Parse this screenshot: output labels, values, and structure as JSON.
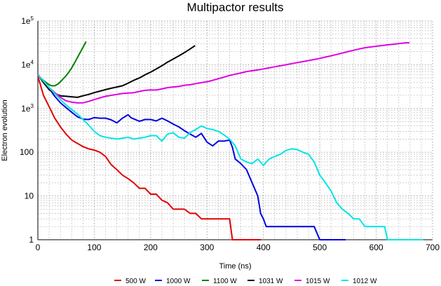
{
  "chart_data": {
    "type": "line",
    "title": "Multipactor results",
    "xlabel": "Time (ns)",
    "ylabel": "Electron evolution",
    "xlim": [
      0,
      700
    ],
    "ylim": [
      1,
      100000
    ],
    "yscale": "log",
    "grid": true,
    "legend_position": "bottom",
    "x_ticks": [
      "0",
      "100",
      "200",
      "300",
      "400",
      "500",
      "600",
      "700"
    ],
    "y_ticks": [
      {
        "base": "1",
        "exp": ""
      },
      {
        "base": "10",
        "exp": ""
      },
      {
        "base": "100",
        "exp": ""
      },
      {
        "base": "1e",
        "exp": "3"
      },
      {
        "base": "1e",
        "exp": "4"
      },
      {
        "base": "1e",
        "exp": "5"
      }
    ],
    "series": [
      {
        "name": "500 W",
        "color": "#e00000",
        "points": [
          [
            0,
            5500
          ],
          [
            5,
            3300
          ],
          [
            10,
            2000
          ],
          [
            20,
            1100
          ],
          [
            30,
            600
          ],
          [
            40,
            380
          ],
          [
            50,
            260
          ],
          [
            60,
            190
          ],
          [
            70,
            160
          ],
          [
            80,
            135
          ],
          [
            90,
            120
          ],
          [
            100,
            112
          ],
          [
            110,
            100
          ],
          [
            120,
            80
          ],
          [
            130,
            52
          ],
          [
            140,
            40
          ],
          [
            150,
            30
          ],
          [
            160,
            25
          ],
          [
            170,
            20
          ],
          [
            180,
            15
          ],
          [
            190,
            15
          ],
          [
            200,
            11
          ],
          [
            210,
            11
          ],
          [
            220,
            8
          ],
          [
            230,
            7
          ],
          [
            240,
            5
          ],
          [
            250,
            5
          ],
          [
            260,
            5
          ],
          [
            270,
            4
          ],
          [
            280,
            4
          ],
          [
            290,
            3
          ],
          [
            300,
            3
          ],
          [
            310,
            3
          ],
          [
            320,
            3
          ],
          [
            340,
            3
          ],
          [
            345,
            1
          ],
          [
            370,
            1
          ],
          [
            395,
            1
          ]
        ]
      },
      {
        "name": "1000 W",
        "color": "#0000e0",
        "points": [
          [
            0,
            5800
          ],
          [
            10,
            4200
          ],
          [
            20,
            2900
          ],
          [
            30,
            1900
          ],
          [
            40,
            1350
          ],
          [
            50,
            1050
          ],
          [
            60,
            820
          ],
          [
            70,
            650
          ],
          [
            80,
            570
          ],
          [
            90,
            560
          ],
          [
            100,
            620
          ],
          [
            110,
            600
          ],
          [
            120,
            600
          ],
          [
            130,
            550
          ],
          [
            140,
            470
          ],
          [
            150,
            600
          ],
          [
            160,
            720
          ],
          [
            165,
            620
          ],
          [
            170,
            580
          ],
          [
            180,
            510
          ],
          [
            190,
            560
          ],
          [
            200,
            560
          ],
          [
            210,
            520
          ],
          [
            220,
            600
          ],
          [
            230,
            520
          ],
          [
            240,
            440
          ],
          [
            250,
            380
          ],
          [
            260,
            310
          ],
          [
            270,
            260
          ],
          [
            280,
            220
          ],
          [
            290,
            270
          ],
          [
            300,
            170
          ],
          [
            310,
            140
          ],
          [
            320,
            180
          ],
          [
            330,
            180
          ],
          [
            340,
            190
          ],
          [
            345,
            130
          ],
          [
            350,
            70
          ],
          [
            360,
            55
          ],
          [
            370,
            40
          ],
          [
            380,
            20
          ],
          [
            390,
            10
          ],
          [
            395,
            4
          ],
          [
            400,
            3
          ],
          [
            405,
            2
          ],
          [
            410,
            2
          ],
          [
            420,
            2
          ],
          [
            430,
            2
          ],
          [
            440,
            2
          ],
          [
            450,
            2
          ],
          [
            460,
            2
          ],
          [
            470,
            2
          ],
          [
            480,
            2
          ],
          [
            490,
            2
          ],
          [
            500,
            1
          ],
          [
            520,
            1
          ],
          [
            545,
            1
          ]
        ]
      },
      {
        "name": "1100 W",
        "color": "#008000",
        "points": [
          [
            0,
            6000
          ],
          [
            5,
            5000
          ],
          [
            10,
            4400
          ],
          [
            15,
            3900
          ],
          [
            20,
            3500
          ],
          [
            25,
            3300
          ],
          [
            30,
            3300
          ],
          [
            35,
            3600
          ],
          [
            40,
            4100
          ],
          [
            45,
            4800
          ],
          [
            50,
            5600
          ],
          [
            55,
            6800
          ],
          [
            60,
            8500
          ],
          [
            65,
            11000
          ],
          [
            70,
            14500
          ],
          [
            75,
            19000
          ],
          [
            80,
            25000
          ],
          [
            85,
            33000
          ]
        ]
      },
      {
        "name": "1031 W",
        "color": "#000000",
        "points": [
          [
            0,
            6000
          ],
          [
            10,
            3900
          ],
          [
            20,
            2700
          ],
          [
            30,
            2200
          ],
          [
            40,
            1950
          ],
          [
            50,
            1900
          ],
          [
            60,
            1850
          ],
          [
            70,
            1800
          ],
          [
            80,
            1950
          ],
          [
            90,
            2100
          ],
          [
            100,
            2300
          ],
          [
            110,
            2500
          ],
          [
            120,
            2700
          ],
          [
            130,
            2900
          ],
          [
            140,
            3100
          ],
          [
            150,
            3300
          ],
          [
            160,
            3800
          ],
          [
            170,
            4400
          ],
          [
            180,
            5000
          ],
          [
            190,
            5900
          ],
          [
            200,
            6800
          ],
          [
            210,
            8000
          ],
          [
            220,
            9500
          ],
          [
            230,
            11500
          ],
          [
            240,
            13500
          ],
          [
            250,
            16000
          ],
          [
            260,
            19000
          ],
          [
            270,
            23000
          ],
          [
            278,
            27000
          ]
        ]
      },
      {
        "name": "1015 W",
        "color": "#e000e0",
        "points": [
          [
            0,
            6000
          ],
          [
            10,
            4200
          ],
          [
            20,
            3000
          ],
          [
            30,
            2300
          ],
          [
            40,
            1800
          ],
          [
            50,
            1500
          ],
          [
            60,
            1400
          ],
          [
            70,
            1350
          ],
          [
            80,
            1350
          ],
          [
            90,
            1450
          ],
          [
            100,
            1600
          ],
          [
            110,
            1750
          ],
          [
            120,
            1900
          ],
          [
            130,
            2000
          ],
          [
            140,
            2100
          ],
          [
            150,
            2200
          ],
          [
            160,
            2250
          ],
          [
            170,
            2300
          ],
          [
            180,
            2450
          ],
          [
            190,
            2600
          ],
          [
            200,
            2650
          ],
          [
            210,
            2650
          ],
          [
            220,
            2800
          ],
          [
            230,
            3000
          ],
          [
            240,
            3100
          ],
          [
            250,
            3200
          ],
          [
            260,
            3400
          ],
          [
            270,
            3500
          ],
          [
            280,
            3700
          ],
          [
            290,
            3900
          ],
          [
            300,
            4100
          ],
          [
            310,
            4400
          ],
          [
            320,
            4800
          ],
          [
            330,
            5200
          ],
          [
            340,
            5700
          ],
          [
            350,
            6100
          ],
          [
            360,
            6500
          ],
          [
            370,
            7000
          ],
          [
            380,
            7300
          ],
          [
            390,
            7600
          ],
          [
            400,
            8000
          ],
          [
            410,
            8500
          ],
          [
            420,
            9000
          ],
          [
            430,
            9500
          ],
          [
            440,
            10000
          ],
          [
            450,
            10600
          ],
          [
            460,
            11200
          ],
          [
            470,
            11800
          ],
          [
            480,
            12500
          ],
          [
            490,
            13200
          ],
          [
            500,
            14000
          ],
          [
            510,
            15000
          ],
          [
            520,
            16000
          ],
          [
            530,
            17200
          ],
          [
            540,
            18500
          ],
          [
            550,
            20000
          ],
          [
            560,
            21500
          ],
          [
            570,
            23000
          ],
          [
            580,
            24500
          ],
          [
            590,
            25500
          ],
          [
            600,
            26500
          ],
          [
            610,
            27500
          ],
          [
            620,
            28500
          ],
          [
            630,
            29500
          ],
          [
            640,
            30500
          ],
          [
            650,
            31500
          ],
          [
            658,
            32000
          ]
        ]
      },
      {
        "name": "1012 W",
        "color": "#00e5e5",
        "points": [
          [
            0,
            5800
          ],
          [
            10,
            4300
          ],
          [
            20,
            3000
          ],
          [
            30,
            2200
          ],
          [
            40,
            1600
          ],
          [
            50,
            1200
          ],
          [
            60,
            950
          ],
          [
            70,
            750
          ],
          [
            80,
            560
          ],
          [
            90,
            420
          ],
          [
            100,
            300
          ],
          [
            110,
            240
          ],
          [
            120,
            220
          ],
          [
            130,
            210
          ],
          [
            140,
            200
          ],
          [
            150,
            210
          ],
          [
            160,
            220
          ],
          [
            170,
            200
          ],
          [
            180,
            210
          ],
          [
            190,
            220
          ],
          [
            200,
            240
          ],
          [
            210,
            240
          ],
          [
            220,
            180
          ],
          [
            230,
            260
          ],
          [
            240,
            280
          ],
          [
            250,
            220
          ],
          [
            260,
            210
          ],
          [
            270,
            280
          ],
          [
            280,
            330
          ],
          [
            290,
            400
          ],
          [
            300,
            350
          ],
          [
            310,
            330
          ],
          [
            320,
            300
          ],
          [
            330,
            250
          ],
          [
            340,
            200
          ],
          [
            350,
            140
          ],
          [
            360,
            70
          ],
          [
            370,
            60
          ],
          [
            380,
            55
          ],
          [
            390,
            70
          ],
          [
            400,
            50
          ],
          [
            410,
            70
          ],
          [
            420,
            80
          ],
          [
            430,
            90
          ],
          [
            440,
            110
          ],
          [
            450,
            120
          ],
          [
            460,
            115
          ],
          [
            470,
            100
          ],
          [
            480,
            90
          ],
          [
            490,
            60
          ],
          [
            500,
            30
          ],
          [
            510,
            20
          ],
          [
            520,
            13
          ],
          [
            530,
            7
          ],
          [
            540,
            5
          ],
          [
            550,
            4
          ],
          [
            560,
            3
          ],
          [
            570,
            3
          ],
          [
            580,
            2
          ],
          [
            590,
            2
          ],
          [
            600,
            2
          ],
          [
            610,
            2
          ],
          [
            615,
            2
          ],
          [
            620,
            1
          ],
          [
            640,
            1
          ],
          [
            660,
            1
          ],
          [
            682,
            1
          ]
        ]
      }
    ]
  }
}
